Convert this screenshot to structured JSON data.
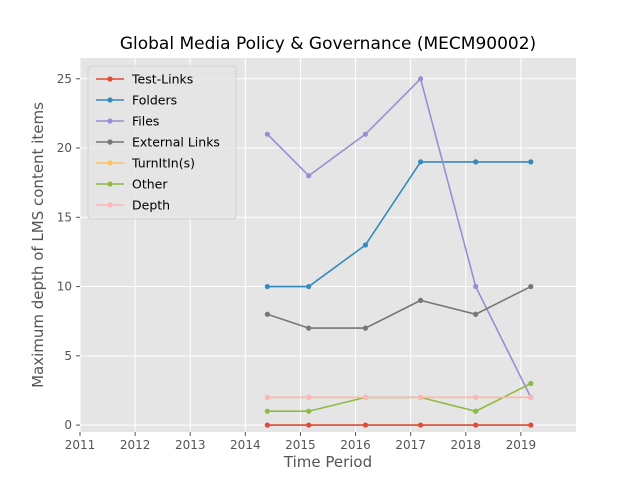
{
  "chart_data": {
    "type": "line",
    "title": "Global Media Policy & Governance (MECM90002)",
    "xlabel": "Time Period",
    "ylabel": "Maximum depth of LMS content items",
    "xlim": [
      2011,
      2020
    ],
    "ylim": [
      -0.5,
      26.5
    ],
    "xticks": [
      2011,
      2012,
      2013,
      2014,
      2015,
      2016,
      2017,
      2018,
      2019
    ],
    "yticks": [
      0,
      5,
      10,
      15,
      20,
      25
    ],
    "x": [
      2014.4,
      2015.15,
      2016.18,
      2017.18,
      2018.18,
      2019.18
    ],
    "grid": true,
    "background": "#e5e5e5",
    "legend_position": "upper-left",
    "series": [
      {
        "name": "Test-Links",
        "color": "#e24a33",
        "values": [
          0,
          0,
          0,
          0,
          0,
          0
        ]
      },
      {
        "name": "Folders",
        "color": "#348abd",
        "values": [
          10,
          10,
          13,
          19,
          19,
          19
        ]
      },
      {
        "name": "Files",
        "color": "#988ed5",
        "values": [
          21,
          18,
          21,
          25,
          10,
          2
        ]
      },
      {
        "name": "External Links",
        "color": "#777777",
        "values": [
          8,
          7,
          7,
          9,
          8,
          10
        ]
      },
      {
        "name": "TurnItIn(s)",
        "color": "#fbc15e",
        "values": [
          2,
          2,
          2,
          2,
          2,
          2
        ]
      },
      {
        "name": "Other",
        "color": "#8eba42",
        "values": [
          1,
          1,
          2,
          2,
          1,
          3
        ]
      },
      {
        "name": "Depth",
        "color": "#ffb5b8",
        "values": [
          2,
          2,
          2,
          2,
          2,
          2
        ]
      }
    ]
  }
}
